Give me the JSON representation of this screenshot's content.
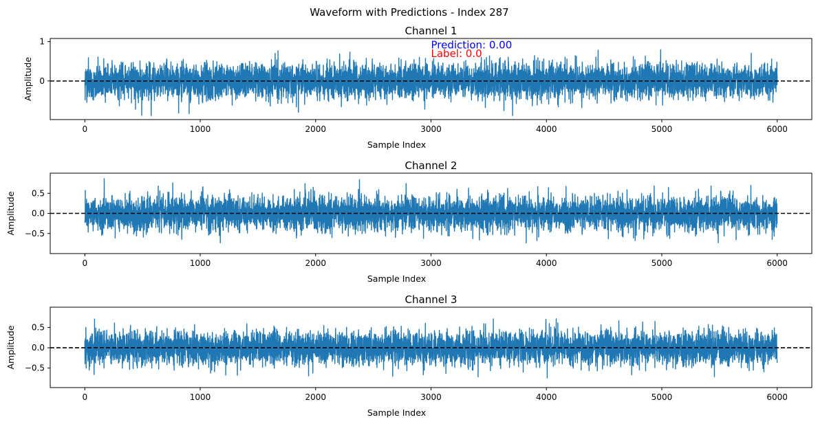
{
  "figure": {
    "suptitle": "Waveform with Predictions - Index 287"
  },
  "chart_data": [
    {
      "type": "line",
      "title": "Channel 1",
      "xlabel": "Sample Index",
      "ylabel": "Amplitude",
      "xlim": [
        -300,
        6300
      ],
      "ylim": [
        -0.98,
        1.08
      ],
      "x_ticks": [
        0,
        1000,
        2000,
        3000,
        4000,
        5000,
        6000
      ],
      "x_tick_labels": [
        "0",
        "1000",
        "2000",
        "3000",
        "4000",
        "5000",
        "6000"
      ],
      "y_ticks": [
        0,
        1
      ],
      "y_tick_labels": [
        "0",
        "1"
      ],
      "n_samples": 6000,
      "amplitude_range": [
        -0.88,
        1.0
      ],
      "series": [
        {
          "values_note": "",
          "color": "#1f77b4"
        }
      ],
      "reference_line": {
        "y": 0,
        "style": "dashed",
        "color": "#000000"
      },
      "annotations": [
        {
          "text": "Prediction: 0.00",
          "x": 3000,
          "y": 0.83,
          "color": "#0000ff"
        },
        {
          "text": "Label: 0.0",
          "x": 3000,
          "y": 0.61,
          "color": "#ff0000"
        }
      ],
      "grid": false
    },
    {
      "type": "line",
      "title": "Channel 2",
      "xlabel": "Sample Index",
      "ylabel": "Amplitude",
      "xlim": [
        -300,
        6300
      ],
      "ylim": [
        -1.0,
        1.0
      ],
      "x_ticks": [
        0,
        1000,
        2000,
        3000,
        4000,
        5000,
        6000
      ],
      "x_tick_labels": [
        "0",
        "1000",
        "2000",
        "3000",
        "4000",
        "5000",
        "6000"
      ],
      "y_ticks": [
        -0.5,
        0.0,
        0.5
      ],
      "y_tick_labels": [
        "−0.5",
        "0.0",
        "0.5"
      ],
      "n_samples": 6000,
      "amplitude_range": [
        -0.88,
        0.9
      ],
      "series": [
        {
          "values_note": "",
          "color": "#1f77b4"
        }
      ],
      "reference_line": {
        "y": 0,
        "style": "dashed",
        "color": "#000000"
      },
      "grid": false
    },
    {
      "type": "line",
      "title": "Channel 3",
      "xlabel": "Sample Index",
      "ylabel": "Amplitude",
      "xlim": [
        -300,
        6300
      ],
      "ylim": [
        -0.98,
        1.0
      ],
      "x_ticks": [
        0,
        1000,
        2000,
        3000,
        4000,
        5000,
        6000
      ],
      "x_tick_labels": [
        "0",
        "1000",
        "2000",
        "3000",
        "4000",
        "5000",
        "6000"
      ],
      "y_ticks": [
        -0.5,
        0.0,
        0.5
      ],
      "y_tick_labels": [
        "−0.5",
        "0.0",
        "0.5"
      ],
      "n_samples": 6000,
      "amplitude_range": [
        -0.9,
        0.88
      ],
      "series": [
        {
          "values_note": "",
          "color": "#1f77b4"
        }
      ],
      "reference_line": {
        "y": 0,
        "style": "dashed",
        "color": "#000000"
      },
      "grid": false
    }
  ]
}
